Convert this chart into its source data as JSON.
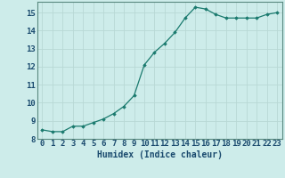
{
  "x": [
    0,
    1,
    2,
    3,
    4,
    5,
    6,
    7,
    8,
    9,
    10,
    11,
    12,
    13,
    14,
    15,
    16,
    17,
    18,
    19,
    20,
    21,
    22,
    23
  ],
  "y": [
    8.5,
    8.4,
    8.4,
    8.7,
    8.7,
    8.9,
    9.1,
    9.4,
    9.8,
    10.4,
    12.1,
    12.8,
    13.3,
    13.9,
    14.7,
    15.3,
    15.2,
    14.9,
    14.7,
    14.7,
    14.7,
    14.7,
    14.9,
    15.0
  ],
  "xlabel": "Humidex (Indice chaleur)",
  "ylim": [
    8,
    15.6
  ],
  "xlim": [
    -0.5,
    23.5
  ],
  "yticks": [
    8,
    9,
    10,
    11,
    12,
    13,
    14,
    15
  ],
  "xticks": [
    0,
    1,
    2,
    3,
    4,
    5,
    6,
    7,
    8,
    9,
    10,
    11,
    12,
    13,
    14,
    15,
    16,
    17,
    18,
    19,
    20,
    21,
    22,
    23
  ],
  "line_color": "#1a7a6e",
  "marker": "D",
  "marker_size": 1.8,
  "bg_color": "#cdecea",
  "grid_color": "#b8d8d5",
  "tick_color": "#1a4a6e",
  "label_color": "#1a4a6e",
  "font_size": 6.5
}
